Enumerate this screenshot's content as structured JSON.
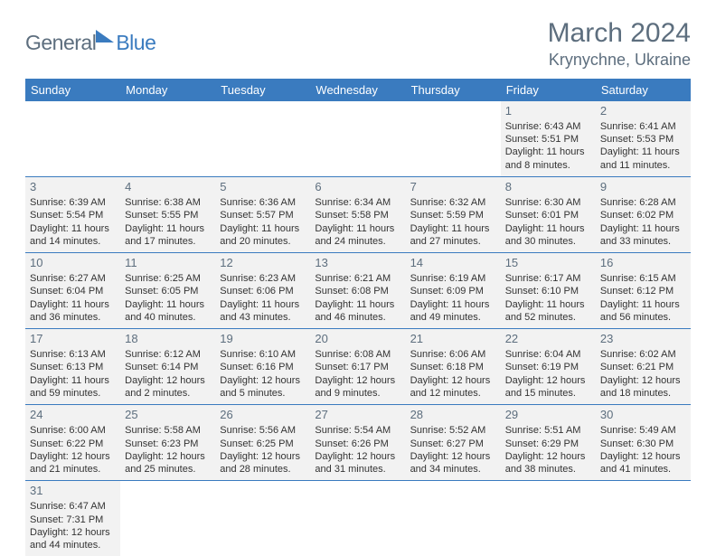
{
  "logo": {
    "textA": "General",
    "textB": "Blue"
  },
  "title": "March 2024",
  "location": "Krynychne, Ukraine",
  "colors": {
    "header_bg": "#3a7bbf",
    "header_text": "#ffffff",
    "muted_text": "#5d6e7e",
    "cell_bg": "#f2f2f2",
    "border": "#3a7bbf"
  },
  "weekdays": [
    "Sunday",
    "Monday",
    "Tuesday",
    "Wednesday",
    "Thursday",
    "Friday",
    "Saturday"
  ],
  "weeks": [
    [
      null,
      null,
      null,
      null,
      null,
      {
        "num": "1",
        "sunrise": "Sunrise: 6:43 AM",
        "sunset": "Sunset: 5:51 PM",
        "day1": "Daylight: 11 hours",
        "day2": "and 8 minutes."
      },
      {
        "num": "2",
        "sunrise": "Sunrise: 6:41 AM",
        "sunset": "Sunset: 5:53 PM",
        "day1": "Daylight: 11 hours",
        "day2": "and 11 minutes."
      }
    ],
    [
      {
        "num": "3",
        "sunrise": "Sunrise: 6:39 AM",
        "sunset": "Sunset: 5:54 PM",
        "day1": "Daylight: 11 hours",
        "day2": "and 14 minutes."
      },
      {
        "num": "4",
        "sunrise": "Sunrise: 6:38 AM",
        "sunset": "Sunset: 5:55 PM",
        "day1": "Daylight: 11 hours",
        "day2": "and 17 minutes."
      },
      {
        "num": "5",
        "sunrise": "Sunrise: 6:36 AM",
        "sunset": "Sunset: 5:57 PM",
        "day1": "Daylight: 11 hours",
        "day2": "and 20 minutes."
      },
      {
        "num": "6",
        "sunrise": "Sunrise: 6:34 AM",
        "sunset": "Sunset: 5:58 PM",
        "day1": "Daylight: 11 hours",
        "day2": "and 24 minutes."
      },
      {
        "num": "7",
        "sunrise": "Sunrise: 6:32 AM",
        "sunset": "Sunset: 5:59 PM",
        "day1": "Daylight: 11 hours",
        "day2": "and 27 minutes."
      },
      {
        "num": "8",
        "sunrise": "Sunrise: 6:30 AM",
        "sunset": "Sunset: 6:01 PM",
        "day1": "Daylight: 11 hours",
        "day2": "and 30 minutes."
      },
      {
        "num": "9",
        "sunrise": "Sunrise: 6:28 AM",
        "sunset": "Sunset: 6:02 PM",
        "day1": "Daylight: 11 hours",
        "day2": "and 33 minutes."
      }
    ],
    [
      {
        "num": "10",
        "sunrise": "Sunrise: 6:27 AM",
        "sunset": "Sunset: 6:04 PM",
        "day1": "Daylight: 11 hours",
        "day2": "and 36 minutes."
      },
      {
        "num": "11",
        "sunrise": "Sunrise: 6:25 AM",
        "sunset": "Sunset: 6:05 PM",
        "day1": "Daylight: 11 hours",
        "day2": "and 40 minutes."
      },
      {
        "num": "12",
        "sunrise": "Sunrise: 6:23 AM",
        "sunset": "Sunset: 6:06 PM",
        "day1": "Daylight: 11 hours",
        "day2": "and 43 minutes."
      },
      {
        "num": "13",
        "sunrise": "Sunrise: 6:21 AM",
        "sunset": "Sunset: 6:08 PM",
        "day1": "Daylight: 11 hours",
        "day2": "and 46 minutes."
      },
      {
        "num": "14",
        "sunrise": "Sunrise: 6:19 AM",
        "sunset": "Sunset: 6:09 PM",
        "day1": "Daylight: 11 hours",
        "day2": "and 49 minutes."
      },
      {
        "num": "15",
        "sunrise": "Sunrise: 6:17 AM",
        "sunset": "Sunset: 6:10 PM",
        "day1": "Daylight: 11 hours",
        "day2": "and 52 minutes."
      },
      {
        "num": "16",
        "sunrise": "Sunrise: 6:15 AM",
        "sunset": "Sunset: 6:12 PM",
        "day1": "Daylight: 11 hours",
        "day2": "and 56 minutes."
      }
    ],
    [
      {
        "num": "17",
        "sunrise": "Sunrise: 6:13 AM",
        "sunset": "Sunset: 6:13 PM",
        "day1": "Daylight: 11 hours",
        "day2": "and 59 minutes."
      },
      {
        "num": "18",
        "sunrise": "Sunrise: 6:12 AM",
        "sunset": "Sunset: 6:14 PM",
        "day1": "Daylight: 12 hours",
        "day2": "and 2 minutes."
      },
      {
        "num": "19",
        "sunrise": "Sunrise: 6:10 AM",
        "sunset": "Sunset: 6:16 PM",
        "day1": "Daylight: 12 hours",
        "day2": "and 5 minutes."
      },
      {
        "num": "20",
        "sunrise": "Sunrise: 6:08 AM",
        "sunset": "Sunset: 6:17 PM",
        "day1": "Daylight: 12 hours",
        "day2": "and 9 minutes."
      },
      {
        "num": "21",
        "sunrise": "Sunrise: 6:06 AM",
        "sunset": "Sunset: 6:18 PM",
        "day1": "Daylight: 12 hours",
        "day2": "and 12 minutes."
      },
      {
        "num": "22",
        "sunrise": "Sunrise: 6:04 AM",
        "sunset": "Sunset: 6:19 PM",
        "day1": "Daylight: 12 hours",
        "day2": "and 15 minutes."
      },
      {
        "num": "23",
        "sunrise": "Sunrise: 6:02 AM",
        "sunset": "Sunset: 6:21 PM",
        "day1": "Daylight: 12 hours",
        "day2": "and 18 minutes."
      }
    ],
    [
      {
        "num": "24",
        "sunrise": "Sunrise: 6:00 AM",
        "sunset": "Sunset: 6:22 PM",
        "day1": "Daylight: 12 hours",
        "day2": "and 21 minutes."
      },
      {
        "num": "25",
        "sunrise": "Sunrise: 5:58 AM",
        "sunset": "Sunset: 6:23 PM",
        "day1": "Daylight: 12 hours",
        "day2": "and 25 minutes."
      },
      {
        "num": "26",
        "sunrise": "Sunrise: 5:56 AM",
        "sunset": "Sunset: 6:25 PM",
        "day1": "Daylight: 12 hours",
        "day2": "and 28 minutes."
      },
      {
        "num": "27",
        "sunrise": "Sunrise: 5:54 AM",
        "sunset": "Sunset: 6:26 PM",
        "day1": "Daylight: 12 hours",
        "day2": "and 31 minutes."
      },
      {
        "num": "28",
        "sunrise": "Sunrise: 5:52 AM",
        "sunset": "Sunset: 6:27 PM",
        "day1": "Daylight: 12 hours",
        "day2": "and 34 minutes."
      },
      {
        "num": "29",
        "sunrise": "Sunrise: 5:51 AM",
        "sunset": "Sunset: 6:29 PM",
        "day1": "Daylight: 12 hours",
        "day2": "and 38 minutes."
      },
      {
        "num": "30",
        "sunrise": "Sunrise: 5:49 AM",
        "sunset": "Sunset: 6:30 PM",
        "day1": "Daylight: 12 hours",
        "day2": "and 41 minutes."
      }
    ],
    [
      {
        "num": "31",
        "sunrise": "Sunrise: 6:47 AM",
        "sunset": "Sunset: 7:31 PM",
        "day1": "Daylight: 12 hours",
        "day2": "and 44 minutes."
      },
      null,
      null,
      null,
      null,
      null,
      null
    ]
  ]
}
